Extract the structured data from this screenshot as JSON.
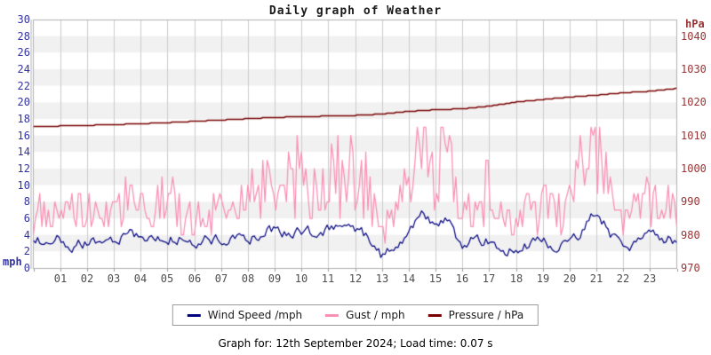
{
  "title": "Daily graph of Weather",
  "footer": "Graph for: 12th September 2024; Load time: 0.07 s",
  "axes": {
    "left": {
      "unit": "mph",
      "ticks": [
        0,
        2,
        4,
        6,
        8,
        10,
        12,
        14,
        16,
        18,
        20,
        22,
        24,
        26,
        28,
        30
      ],
      "color": "#3333a0"
    },
    "right": {
      "unit": "hPa",
      "ticks": [
        970,
        980,
        990,
        1000,
        1010,
        1020,
        1030,
        1040
      ],
      "color": "#993333"
    },
    "x": {
      "ticks": [
        "01",
        "02",
        "03",
        "04",
        "05",
        "06",
        "07",
        "08",
        "09",
        "10",
        "11",
        "12",
        "13",
        "14",
        "15",
        "16",
        "17",
        "18",
        "19",
        "20",
        "21",
        "22",
        "23"
      ],
      "color": "#4d4d4d"
    }
  },
  "legend": [
    {
      "label": "Wind Speed /mph",
      "color": "#000080"
    },
    {
      "label": "Gust / mph",
      "color": "#fa8fb5"
    },
    {
      "label": "Pressure / hPa",
      "color": "#7a0000"
    }
  ],
  "colors": {
    "wind": "#000080",
    "gust": "#fa8fb5",
    "pressure": "#7a0000",
    "band_gray": "#f1f1f1",
    "grid": "#cccccc",
    "border": "#b0b0b0",
    "tick_mark": "#999999"
  },
  "chart_data": {
    "type": "line",
    "title": "Daily graph of Weather",
    "x_unit": "hour of day",
    "x_range": [
      0,
      24
    ],
    "ylim_left": [
      0,
      30
    ],
    "ylim_right": [
      970,
      1045
    ],
    "grid": "vertical line each hour; alternating white/gray horizontal bands every 2 mph",
    "legend_position": "bottom-center",
    "series": [
      {
        "name": "Wind Speed /mph",
        "axis": "left",
        "color": "#000080",
        "anchor_step_h": 0.5,
        "values": [
          3.6,
          3.0,
          3.4,
          2.8,
          3.2,
          3.0,
          3.6,
          4.2,
          3.8,
          3.4,
          3.8,
          3.5,
          3.2,
          3.6,
          3.3,
          3.6,
          3.4,
          4.4,
          4.8,
          4.2,
          4.6,
          4.0,
          4.8,
          4.4,
          4.6,
          3.6,
          1.5,
          2.4,
          4.6,
          6.6,
          5.2,
          6.0,
          2.2,
          3.6,
          3.2,
          2.4,
          1.9,
          2.8,
          3.2,
          2.7,
          3.3,
          4.4,
          7.0,
          4.2,
          2.4,
          3.2,
          3.8,
          3.6,
          3.2
        ],
        "noise_amp": 0.6
      },
      {
        "name": "Gust / mph",
        "axis": "left",
        "color": "#fa8fb5",
        "anchor_step_h": 0.5,
        "values": [
          5.5,
          6.5,
          6.0,
          7.0,
          5.8,
          6.5,
          7.2,
          7.0,
          9.2,
          7.0,
          7.6,
          6.6,
          6.0,
          6.6,
          6.2,
          7.0,
          8.6,
          9.6,
          10.0,
          9.0,
          10.4,
          9.4,
          12.0,
          10.0,
          10.6,
          8.8,
          3.5,
          6.0,
          12.0,
          15.0,
          11.0,
          13.5,
          5.2,
          7.6,
          8.2,
          6.2,
          5.2,
          6.6,
          7.6,
          6.6,
          7.2,
          11.0,
          15.6,
          9.0,
          6.0,
          7.6,
          8.2,
          7.6,
          8.6
        ],
        "noise_factor": 0.4,
        "quantize_mph": 1,
        "max_observed": 17
      },
      {
        "name": "Pressure / hPa",
        "axis": "right",
        "color": "#7a0000",
        "anchor_step_h": 1,
        "values": [
          1012.8,
          1013.0,
          1013.2,
          1013.4,
          1013.7,
          1014.0,
          1014.4,
          1014.8,
          1015.2,
          1015.6,
          1015.8,
          1016.0,
          1016.2,
          1016.6,
          1017.4,
          1017.9,
          1018.2,
          1019.0,
          1020.2,
          1021.0,
          1021.7,
          1022.3,
          1023.0,
          1023.5,
          1024.3
        ]
      }
    ]
  }
}
